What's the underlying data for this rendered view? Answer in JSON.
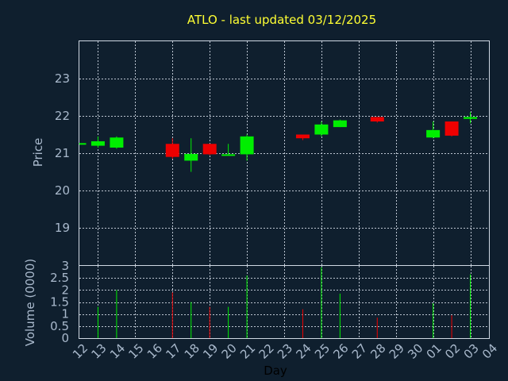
{
  "chart_data": {
    "type": "candlestick",
    "title": "ATLO - last updated 03/12/2025",
    "colors": {
      "background": "#0f1f2e",
      "up": "#00ee00",
      "down": "#ee0000",
      "title": "#ffff33",
      "axis_text": "#a9b9cc",
      "frame": "#cfd8e3"
    },
    "x_tick_labels": [
      "12",
      "13",
      "14",
      "15",
      "16",
      "17",
      "18",
      "19",
      "20",
      "21",
      "22",
      "23",
      "24",
      "25",
      "26",
      "27",
      "28",
      "29",
      "30",
      "01",
      "02",
      "03",
      "04"
    ],
    "xlabel": "Day",
    "price_panel": {
      "ylabel": "Price",
      "ylim": [
        18,
        24
      ],
      "y_ticks": [
        "19",
        "20",
        "21",
        "22",
        "23"
      ],
      "grid": true
    },
    "volume_panel": {
      "ylabel": "Volume (0000)",
      "ylim": [
        0,
        3
      ],
      "y_ticks": [
        "0",
        "0.5",
        "1",
        "1.5",
        "2",
        "2.5",
        "3"
      ],
      "grid": true
    },
    "candles": [
      {
        "i": 0,
        "open": 21.27,
        "high": 21.27,
        "low": 21.25,
        "close": 21.27,
        "volume": 0
      },
      {
        "i": 1,
        "open": 21.2,
        "high": 21.45,
        "low": 21.15,
        "close": 21.32,
        "volume": 1.3
      },
      {
        "i": 2,
        "open": 21.15,
        "high": 21.45,
        "low": 21.12,
        "close": 21.42,
        "volume": 2.0
      },
      {
        "i": 5,
        "open": 21.25,
        "high": 21.4,
        "low": 20.85,
        "close": 20.9,
        "volume": 1.9
      },
      {
        "i": 6,
        "open": 20.8,
        "high": 21.4,
        "low": 20.5,
        "close": 20.98,
        "volume": 1.5
      },
      {
        "i": 7,
        "open": 21.25,
        "high": 21.25,
        "low": 20.95,
        "close": 20.97,
        "volume": 1.3
      },
      {
        "i": 8,
        "open": 20.95,
        "high": 21.25,
        "low": 20.95,
        "close": 20.97,
        "volume": 1.3
      },
      {
        "i": 9,
        "open": 20.97,
        "high": 21.5,
        "low": 20.8,
        "close": 21.45,
        "volume": 2.6
      },
      {
        "i": 12,
        "open": 21.5,
        "high": 21.5,
        "low": 21.35,
        "close": 21.4,
        "volume": 1.2
      },
      {
        "i": 13,
        "open": 21.5,
        "high": 21.85,
        "low": 21.45,
        "close": 21.77,
        "volume": 2.95
      },
      {
        "i": 14,
        "open": 21.7,
        "high": 21.9,
        "low": 21.7,
        "close": 21.88,
        "volume": 1.85
      },
      {
        "i": 16,
        "open": 21.97,
        "high": 21.97,
        "low": 21.82,
        "close": 21.85,
        "volume": 0.85
      },
      {
        "i": 19,
        "open": 21.42,
        "high": 21.85,
        "low": 21.4,
        "close": 21.62,
        "volume": 1.45
      },
      {
        "i": 20,
        "open": 21.85,
        "high": 21.85,
        "low": 21.45,
        "close": 21.47,
        "volume": 0.95
      },
      {
        "i": 21,
        "open": 21.92,
        "high": 22.1,
        "low": 21.8,
        "close": 21.97,
        "volume": 2.65
      }
    ]
  }
}
